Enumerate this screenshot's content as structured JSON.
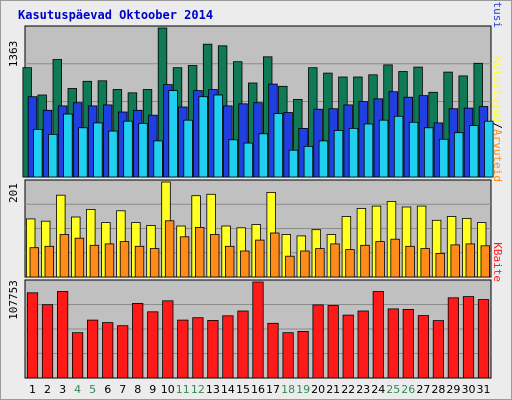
{
  "chart_data": {
    "type": "bar",
    "title": "Kasutuspäevad Oktoober 2014",
    "days": [
      "1",
      "2",
      "3",
      "4",
      "5",
      "6",
      "7",
      "8",
      "9",
      "10",
      "11",
      "12",
      "13",
      "14",
      "15",
      "16",
      "17",
      "18",
      "19",
      "20",
      "21",
      "22",
      "23",
      "24",
      "25",
      "26",
      "27",
      "28",
      "29",
      "30",
      "31"
    ],
    "weekend_days": [
      "4",
      "5",
      "11",
      "12",
      "18",
      "19",
      "25",
      "26"
    ],
    "colors": {
      "title": "#0000c8",
      "plot_bg": "#c0c0c0",
      "frame_bg": "#ececec",
      "weekday_label": "#000000",
      "weekend_label": "#2e8b57",
      "kulastajad": "#0f7a55",
      "kulastused": "#1f3fe0",
      "lehekulgi": "#1fd0f0",
      "failid": "#1fd0f0",
      "poordumisi": "#0f7a55",
      "external": "#ffff22",
      "arvuteid": "#ff8c1a",
      "kbaite": "#ff1a1a"
    },
    "panel1": {
      "ymax_label": "1363",
      "ymax": 1363,
      "right_labels": [
        {
          "text": "Pöördumisi",
          "color": "#0f7a55"
        },
        {
          "text": "/",
          "color": "#000000"
        },
        {
          "text": "Faile",
          "color": "#1fd0f0"
        },
        {
          "text": "/",
          "color": "#000000"
        },
        {
          "text": "Lehekülgi",
          "color": "#1fd0f0"
        },
        {
          "text": "/",
          "color": "#000000"
        },
        {
          "text": "Külastusi",
          "color": "#1f3fe0"
        }
      ],
      "series": [
        {
          "name": "Pöördumisi",
          "color": "#0f7a55",
          "values": [
            1000,
            750,
            1075,
            810,
            875,
            880,
            800,
            770,
            800,
            1363,
            1000,
            1020,
            1215,
            1200,
            1055,
            860,
            1100,
            830,
            710,
            1000,
            950,
            915,
            915,
            935,
            1025,
            965,
            1005,
            775,
            960,
            925,
            1040
          ]
        },
        {
          "name": "Külastusi",
          "color": "#1f3fe0",
          "values": [
            735,
            610,
            650,
            680,
            650,
            660,
            595,
            610,
            565,
            845,
            640,
            790,
            800,
            650,
            670,
            680,
            850,
            590,
            445,
            620,
            625,
            660,
            690,
            715,
            780,
            730,
            745,
            495,
            625,
            630,
            645
          ]
        },
        {
          "name": "Faile",
          "color": "#1fd0f0",
          "values": [
            435,
            390,
            575,
            450,
            495,
            420,
            510,
            490,
            330,
            790,
            520,
            735,
            750,
            340,
            310,
            395,
            580,
            245,
            280,
            330,
            425,
            445,
            485,
            520,
            555,
            500,
            450,
            345,
            405,
            470,
            510
          ]
        }
      ]
    },
    "panel2": {
      "ymax_label": "201",
      "ymax": 201,
      "right_labels": [
        {
          "text": "Külastajad",
          "color": "#ffff22"
        },
        {
          "text": "/",
          "color": "#000000"
        },
        {
          "text": "Arvuteid",
          "color": "#ff8c1a"
        }
      ],
      "series": [
        {
          "name": "Külastajad",
          "color": "#ffff22",
          "values": [
            123,
            118,
            173,
            127,
            143,
            115,
            140,
            115,
            109,
            201,
            108,
            172,
            175,
            108,
            104,
            111,
            179,
            90,
            87,
            100,
            90,
            128,
            145,
            150,
            160,
            148,
            150,
            120,
            128,
            124,
            115
          ]
        },
        {
          "name": "Arvuteid",
          "color": "#ff8c1a",
          "values": [
            62,
            65,
            90,
            82,
            67,
            70,
            75,
            65,
            60,
            119,
            85,
            105,
            90,
            65,
            55,
            78,
            93,
            44,
            55,
            60,
            70,
            58,
            67,
            75,
            80,
            65,
            60,
            50,
            68,
            70,
            66
          ]
        }
      ]
    },
    "panel3": {
      "ymax_label": "107753",
      "ymax": 107753,
      "right_labels": [
        {
          "text": "KBaite",
          "color": "#ff1a1a"
        }
      ],
      "series": [
        {
          "name": "KBaite",
          "color": "#ff1a1a",
          "values": [
            95600,
            82300,
            97100,
            50800,
            65000,
            62200,
            58700,
            83700,
            74300,
            86700,
            65000,
            67700,
            64700,
            69800,
            75200,
            107753,
            61400,
            50800,
            52300,
            82000,
            81400,
            70600,
            75200,
            97100,
            77600,
            77000,
            70000,
            64400,
            90000,
            91400,
            88000
          ]
        }
      ]
    }
  }
}
